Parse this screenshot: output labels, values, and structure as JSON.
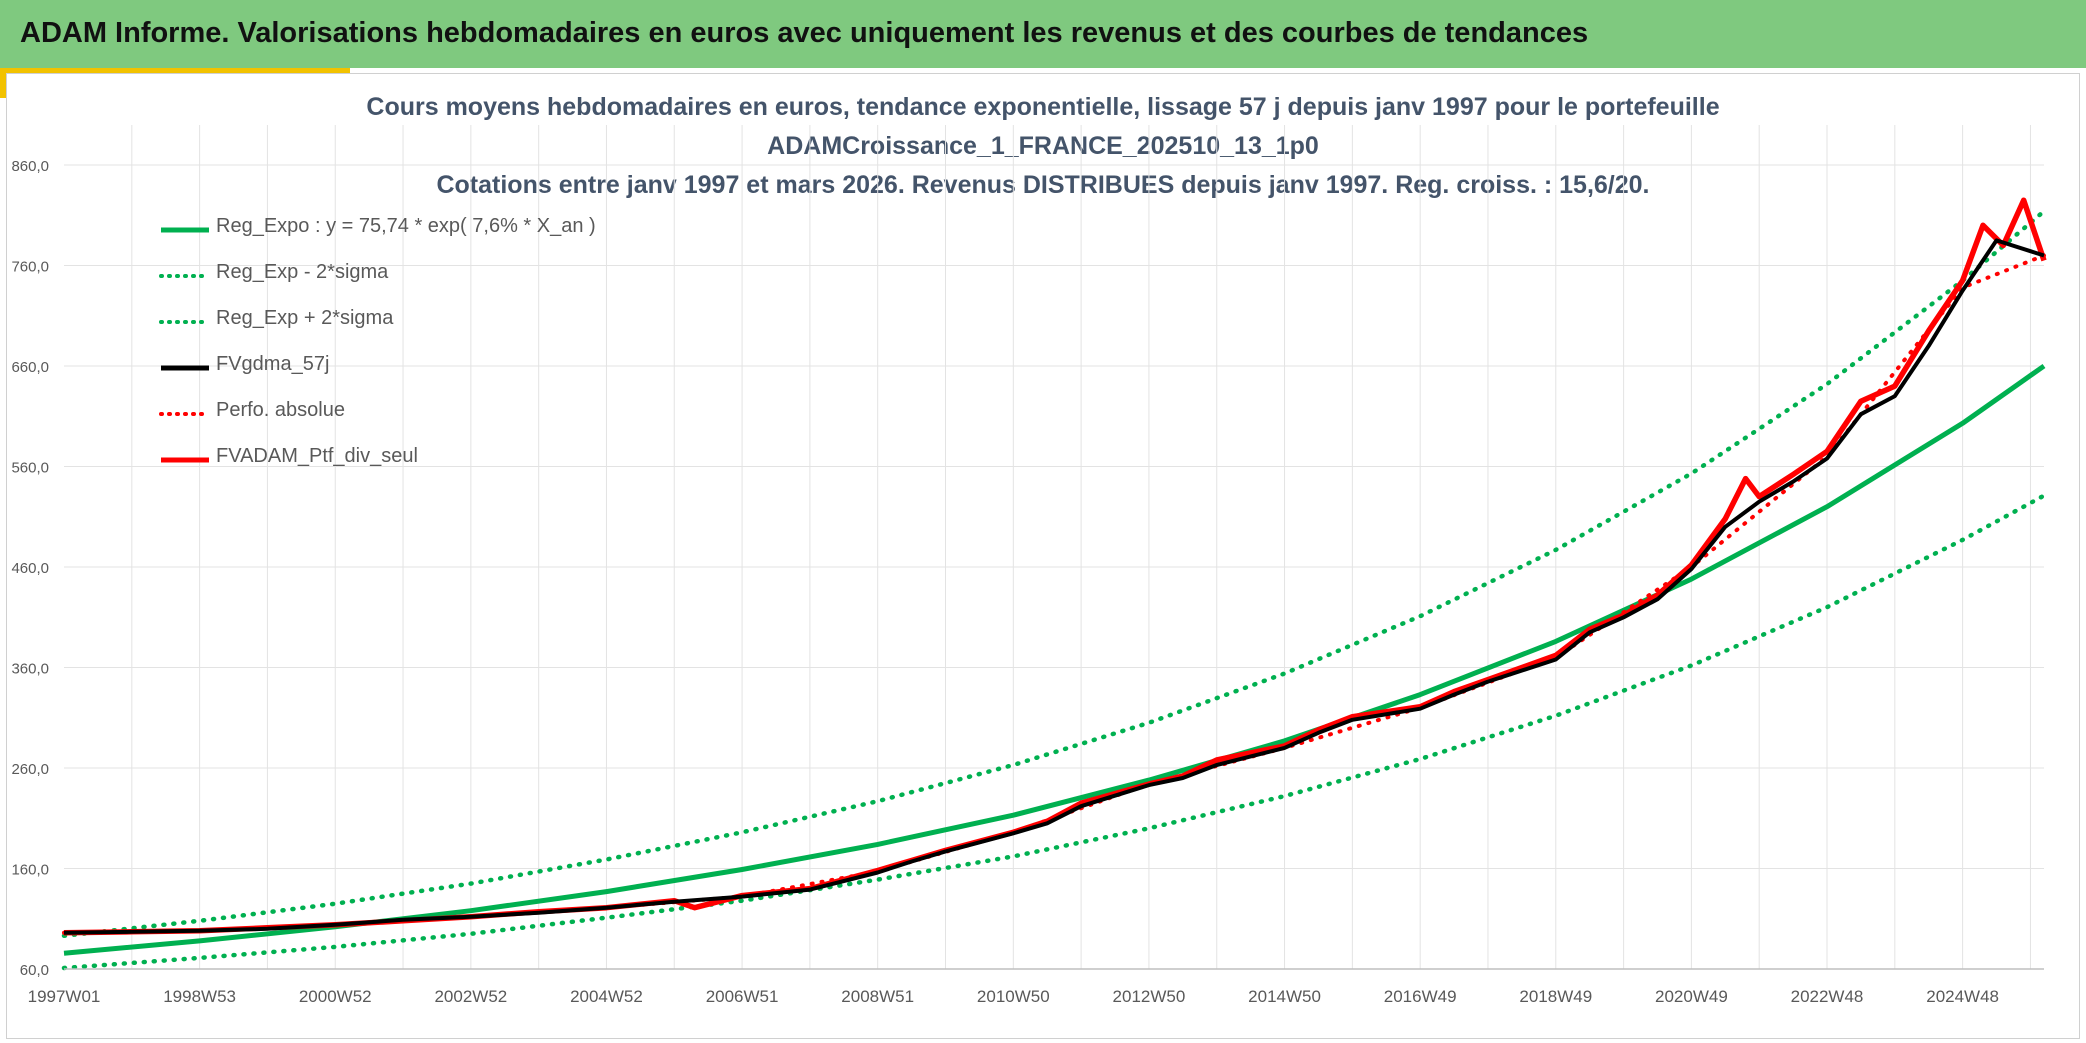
{
  "header": {
    "title": "ADAM Informe. Valorisations hebdomadaires en euros avec uniquement les revenus et des courbes de tendances"
  },
  "colors": {
    "banner": "#7fc97f",
    "accent": "#f2c200",
    "green": "#00b050",
    "red": "#ff0000",
    "black": "#000000",
    "grid": "#e3e3e3",
    "title": "#44546a"
  },
  "chart_data": {
    "type": "line",
    "title_lines": [
      "Cours moyens hebdomadaires en euros, tendance exponentielle, lissage 57 j depuis janv 1997 pour le portefeuille",
      "ADAMCroissance_1_FRANCE_202510_13_1p0",
      "Cotations entre janv 1997 et mars 2026. Revenus DISTRIBUES depuis janv 1997. Reg. croiss. : 15,6/20."
    ],
    "xlabel": "",
    "ylabel": "",
    "x_range": [
      1997.0,
      2026.2
    ],
    "ylim": [
      60,
      860
    ],
    "y_ticks": [
      "860,0",
      "760,0",
      "660,0",
      "560,0",
      "460,0",
      "360,0",
      "260,0",
      "160,0",
      "60,0"
    ],
    "x_ticks": [
      {
        "label": "1997W01",
        "x": 1997.0
      },
      {
        "label": "1998W53",
        "x": 1999.0
      },
      {
        "label": "2000W52",
        "x": 2001.0
      },
      {
        "label": "2002W52",
        "x": 2003.0
      },
      {
        "label": "2004W52",
        "x": 2005.0
      },
      {
        "label": "2006W51",
        "x": 2007.0
      },
      {
        "label": "2008W51",
        "x": 2009.0
      },
      {
        "label": "2010W50",
        "x": 2011.0
      },
      {
        "label": "2012W50",
        "x": 2013.0
      },
      {
        "label": "2014W50",
        "x": 2015.0
      },
      {
        "label": "2016W49",
        "x": 2017.0
      },
      {
        "label": "2018W49",
        "x": 2019.0
      },
      {
        "label": "2020W49",
        "x": 2021.0
      },
      {
        "label": "2022W48",
        "x": 2023.0
      },
      {
        "label": "2024W48",
        "x": 2025.0
      }
    ],
    "grid": true,
    "legend_position": "top-left",
    "series": [
      {
        "name": "Reg_Expo : y = 75,74 * exp( 7,6% *  X_an )",
        "color": "#00b050",
        "style": "solid",
        "x": [
          1997,
          1999,
          2001,
          2003,
          2005,
          2007,
          2009,
          2011,
          2013,
          2015,
          2017,
          2019,
          2021,
          2023,
          2025,
          2026.2
        ],
        "y": [
          75.7,
          88,
          102,
          118,
          137,
          159,
          184,
          213,
          248,
          287,
          333,
          386,
          448,
          520,
          603,
          660
        ]
      },
      {
        "name": "Reg_Exp - 2*sigma",
        "color": "#00b050",
        "style": "dotted",
        "x": [
          1997,
          1999,
          2001,
          2003,
          2005,
          2007,
          2009,
          2011,
          2013,
          2015,
          2017,
          2019,
          2021,
          2023,
          2025,
          2026.2
        ],
        "y": [
          61,
          71,
          82,
          95,
          111,
          128,
          149,
          172,
          200,
          232,
          269,
          312,
          362,
          420,
          487,
          531
        ]
      },
      {
        "name": "Reg_Exp + 2*sigma",
        "color": "#00b050",
        "style": "dotted",
        "x": [
          1997,
          1999,
          2001,
          2003,
          2005,
          2007,
          2009,
          2011,
          2013,
          2015,
          2017,
          2019,
          2021,
          2023,
          2025,
          2026.2
        ],
        "y": [
          93,
          108,
          125,
          145,
          169,
          196,
          227,
          263,
          305,
          354,
          411,
          477,
          553,
          642,
          745,
          814
        ]
      },
      {
        "name": "FVgdma_57j",
        "color": "#000000",
        "style": "solid",
        "x": [
          1997,
          1998,
          1999,
          2000,
          2001,
          2002,
          2003,
          2004,
          2005,
          2006,
          2007,
          2008,
          2009,
          2009.5,
          2010,
          2011,
          2011.5,
          2012,
          2013,
          2013.5,
          2014,
          2015,
          2015.5,
          2016,
          2017,
          2017.5,
          2018,
          2019,
          2019.5,
          2020,
          2020.5,
          2021,
          2021.5,
          2022,
          2022.5,
          2023,
          2023.5,
          2024,
          2024.5,
          2025,
          2025.5,
          2026.2
        ],
        "y": [
          96,
          97,
          98,
          100,
          104,
          109,
          112,
          116,
          121,
          127,
          132,
          139,
          156,
          167,
          177,
          195,
          205,
          222,
          243,
          250,
          263,
          280,
          295,
          308,
          319,
          333,
          346,
          368,
          395,
          410,
          428,
          458,
          500,
          525,
          545,
          568,
          612,
          630,
          680,
          735,
          785,
          770
        ]
      },
      {
        "name": "Perfo. absolue",
        "color": "#ff0000",
        "style": "dotted",
        "x": [
          1997,
          1999,
          2001,
          2003,
          2005,
          2007,
          2009,
          2011,
          2013,
          2015,
          2017,
          2019,
          2021,
          2023,
          2025,
          2026.2
        ],
        "y": [
          96,
          98,
          104,
          112,
          121,
          132,
          157,
          196,
          244,
          280,
          320,
          370,
          460,
          570,
          738,
          770
        ]
      },
      {
        "name": "FVADAM_Ptf_div_seul",
        "color": "#ff0000",
        "style": "solid",
        "x": [
          1997,
          1998,
          1999,
          2000,
          2001,
          2002,
          2003,
          2004,
          2005,
          2006,
          2006.3,
          2007,
          2008,
          2009,
          2009.5,
          2010,
          2011,
          2011.5,
          2012,
          2013,
          2013.5,
          2014,
          2015,
          2015.5,
          2016,
          2017,
          2017.5,
          2018,
          2019,
          2019.5,
          2020,
          2020.5,
          2021,
          2021.5,
          2021.8,
          2022,
          2022.5,
          2023,
          2023.5,
          2024,
          2024.5,
          2025,
          2025.3,
          2025.6,
          2025.9,
          2026.2
        ],
        "y": [
          96,
          97,
          98,
          101,
          104,
          108,
          112,
          117,
          121,
          128,
          121,
          133,
          140,
          158,
          168,
          178,
          196,
          207,
          225,
          244,
          252,
          268,
          282,
          298,
          311,
          321,
          336,
          348,
          372,
          398,
          412,
          432,
          462,
          508,
          548,
          530,
          552,
          575,
          625,
          640,
          695,
          745,
          800,
          780,
          825,
          765
        ]
      }
    ]
  }
}
